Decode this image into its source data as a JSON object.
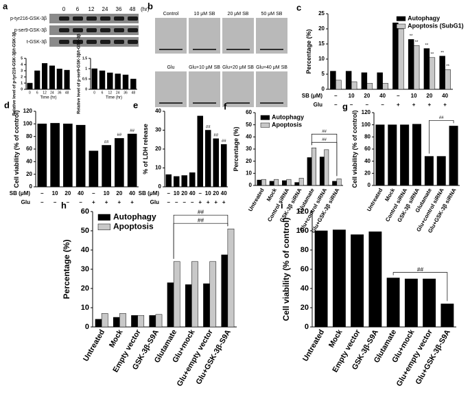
{
  "blot": {
    "label": "a",
    "lanes": [
      0,
      6,
      12,
      24,
      36,
      48
    ],
    "unit": "(hr)",
    "rows": [
      "p-tyr216-GSK-3β",
      "p-ser9-GSK-3β",
      "t-GSK-3β"
    ]
  },
  "images": {
    "label": "b",
    "captions": [
      "Control",
      "10 μM SB",
      "20 μM SB",
      "50 μM SB",
      "Glu",
      "Glu+10 μM SB",
      "Glu+20 μM SB",
      "Glu+40 μM SB"
    ]
  },
  "chart_data": [
    {
      "type": "bar",
      "ylabel": "Relative level of p-tyr216-GSK-3β/t-GSK-3β",
      "xlabel": "Time (hr)",
      "categories": [
        "0",
        "6",
        "12",
        "24",
        "36",
        "48"
      ],
      "series": [
        {
          "color": "#000000",
          "values": [
            1,
            3,
            4.2,
            3.8,
            3.3,
            3.1
          ]
        }
      ],
      "ylim": [
        0,
        5
      ],
      "yticks": [
        0,
        1,
        2,
        3,
        4,
        5
      ]
    },
    {
      "type": "bar",
      "ylabel": "Relative level of p-ser9-GSK-3β/t-GSK-3β",
      "xlabel": "Time (hr)",
      "categories": [
        "0",
        "6",
        "12",
        "24",
        "36",
        "48"
      ],
      "series": [
        {
          "color": "#000000",
          "values": [
            1,
            0.9,
            0.8,
            0.75,
            0.7,
            0.5
          ]
        }
      ],
      "ylim": [
        0,
        1.5
      ],
      "yticks": [
        0,
        0.5,
        1,
        1.5
      ]
    },
    {
      "type": "bar",
      "label": "c",
      "ylabel": "Percentage (%)",
      "legend": "upper right",
      "conditions": [
        {
          "name": "SB (μM)",
          "labels": [
            "–",
            "10",
            "20",
            "40",
            "–",
            "10",
            "20",
            "40"
          ]
        },
        {
          "name": "Glu",
          "labels": [
            "–",
            "–",
            "–",
            "–",
            "+",
            "+",
            "+",
            "+"
          ]
        }
      ],
      "series": [
        {
          "name": "Autophagy",
          "color": "#000000",
          "values": [
            6,
            6,
            5.5,
            5.5,
            22,
            16.5,
            13.5,
            11
          ],
          "annotations": [
            null,
            null,
            null,
            null,
            null,
            "**",
            "**",
            "**"
          ]
        },
        {
          "name": "Apoptosis (SubG1)",
          "color": "#c8c8c8",
          "values": [
            3,
            2.5,
            2,
            2,
            20,
            14.5,
            10.5,
            6.5
          ],
          "annotations": [
            null,
            null,
            null,
            null,
            null,
            "**",
            "**",
            "**"
          ]
        }
      ],
      "ylim": [
        0,
        25
      ],
      "yticks": [
        0,
        5,
        10,
        15,
        20,
        25
      ]
    },
    {
      "type": "bar",
      "label": "d",
      "ylabel": "Cell viability (% of control)",
      "conditions": [
        {
          "name": "SB (μM)",
          "labels": [
            "–",
            "10",
            "20",
            "40",
            "–",
            "10",
            "20",
            "40"
          ]
        },
        {
          "name": "Glu",
          "labels": [
            "–",
            "–",
            "–",
            "–",
            "+",
            "+",
            "+",
            "+"
          ]
        }
      ],
      "series": [
        {
          "color": "#000000",
          "values": [
            100,
            101,
            100,
            98,
            57,
            66,
            77,
            84
          ],
          "annotations": [
            null,
            null,
            null,
            null,
            null,
            "##",
            "##",
            "##"
          ]
        }
      ],
      "ylim": [
        0,
        120
      ],
      "yticks": [
        0,
        20,
        40,
        60,
        80,
        100,
        120
      ]
    },
    {
      "type": "bar",
      "label": "e",
      "ylabel": "% of LDH release",
      "conditions": [
        {
          "name": "SB (μM)",
          "labels": [
            "–",
            "10",
            "20",
            "40",
            "–",
            "10",
            "20",
            "40"
          ]
        },
        {
          "name": "Glu",
          "labels": [
            "–",
            "–",
            "–",
            "–",
            "+",
            "+",
            "+",
            "+"
          ]
        }
      ],
      "series": [
        {
          "color": "#000000",
          "values": [
            6.5,
            5.5,
            6,
            7.5,
            37.5,
            30,
            25.5,
            22.5
          ],
          "annotations": [
            null,
            null,
            null,
            null,
            null,
            "##",
            "##",
            "##"
          ]
        }
      ],
      "ylim": [
        0,
        40
      ],
      "yticks": [
        0,
        10,
        20,
        30,
        40
      ]
    },
    {
      "type": "bar",
      "label": "f",
      "ylabel": "Percentage (%)",
      "legend": "upper left",
      "categories": [
        "Untreated",
        "Mock",
        "Control siRNA",
        "GSK-3β siRNA",
        "Glutamate",
        "Glu+control siRNA",
        "Glu+GSK-3β siRNA"
      ],
      "series": [
        {
          "name": "Autophagy",
          "color": "#000000",
          "values": [
            4.5,
            3.5,
            4,
            2.5,
            23,
            23.5,
            3.5
          ]
        },
        {
          "name": "Apoptosis",
          "color": "#c8c8c8",
          "values": [
            5,
            5,
            5,
            6,
            31,
            29.5,
            5.5
          ]
        }
      ],
      "brackets": [
        {
          "label": "##",
          "from": "Glutamate",
          "to": "Glu+GSK-3β siRNA"
        },
        {
          "label": "##",
          "from": "Glutamate",
          "to": "Glu+GSK-3β siRNA"
        }
      ],
      "ylim": [
        0,
        60
      ],
      "yticks": [
        0,
        10,
        20,
        30,
        40,
        50,
        60
      ]
    },
    {
      "type": "bar",
      "label": "g",
      "ylabel": "Cell viability (% of control)",
      "categories": [
        "Untreated",
        "Mock",
        "Control siRNA",
        "GSK-3β siRNA",
        "Glutamate",
        "Glu+control siRNA",
        "Glu+GSK-3β siRNA"
      ],
      "series": [
        {
          "color": "#000000",
          "values": [
            100,
            100,
            100,
            101,
            48,
            48,
            98
          ]
        }
      ],
      "brackets": [
        {
          "label": "##",
          "from": "Glutamate",
          "to": "Glu+GSK-3β siRNA"
        }
      ],
      "ylim": [
        0,
        120
      ],
      "yticks": [
        0,
        20,
        40,
        60,
        80,
        100,
        120
      ]
    },
    {
      "type": "bar",
      "label": "h",
      "ylabel": "Percentage (%)",
      "legend": "upper left",
      "categories": [
        "Untreated",
        "Mock",
        "Empty vector",
        "GSK-3β-S9A",
        "Glutamate",
        "Glu+mock",
        "Glu+empty vector",
        "Glu+GSK-3β-S9A"
      ],
      "series": [
        {
          "name": "Autophagy",
          "color": "#000000",
          "values": [
            4,
            5,
            6,
            6,
            23,
            22,
            22.5,
            37.5
          ]
        },
        {
          "name": "Apoptosis",
          "color": "#c8c8c8",
          "values": [
            7,
            7,
            6,
            6.5,
            34,
            34,
            34,
            51
          ]
        }
      ],
      "brackets": [
        {
          "label": "##",
          "from": "Glutamate",
          "to": "Glu+GSK-3β-S9A"
        },
        {
          "label": "##",
          "from": "Glutamate",
          "to": "Glu+GSK-3β-S9A"
        }
      ],
      "ylim": [
        0,
        60
      ],
      "yticks": [
        0,
        10,
        20,
        30,
        40,
        50,
        60
      ]
    },
    {
      "type": "bar",
      "label": "i",
      "ylabel": "Cell viability (% of control)",
      "categories": [
        "Untreated",
        "Mock",
        "Empty vector",
        "GSK-3β-S9A",
        "Glutamate",
        "Glu+mock",
        "Glu+empty vector",
        "Glu+GSK-3β-S9A"
      ],
      "series": [
        {
          "color": "#000000",
          "values": [
            100,
            101,
            96,
            99,
            51,
            50,
            50,
            24
          ]
        }
      ],
      "brackets": [
        {
          "label": "##",
          "from": "Glutamate",
          "to": "Glu+GSK-3β-S9A"
        }
      ],
      "ylim": [
        0,
        120
      ],
      "yticks": [
        0,
        20,
        40,
        60,
        80,
        100,
        120
      ]
    }
  ]
}
